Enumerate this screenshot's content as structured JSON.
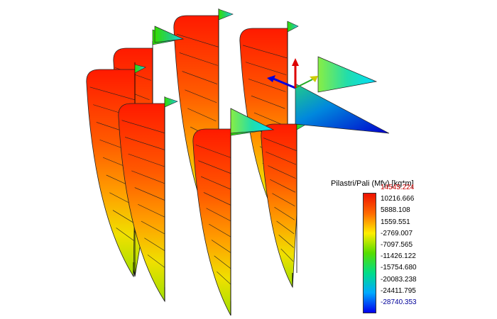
{
  "legend": {
    "title": "Pilastri/Pali (Mfy) [kg*m]",
    "max_color": "#cc0000",
    "min_color": "#000099",
    "text_color": "#000000",
    "values": [
      "14545.224",
      "10216.666",
      "5888.108",
      "1559.551",
      "-2769.007",
      "-7097.565",
      "-11426.122",
      "-15754.680",
      "-20083.238",
      "-24411.795",
      "-28740.353"
    ],
    "colors": [
      "#ee1100",
      "#ff6a00",
      "#ffee00",
      "#55dd00",
      "#00dd88",
      "#00aaff",
      "#0000ee"
    ]
  },
  "axes": {
    "x_color": "#0000dd",
    "y_color": "#22aa22",
    "z_color": "#dd0000",
    "marker_color": "#cccc00"
  }
}
